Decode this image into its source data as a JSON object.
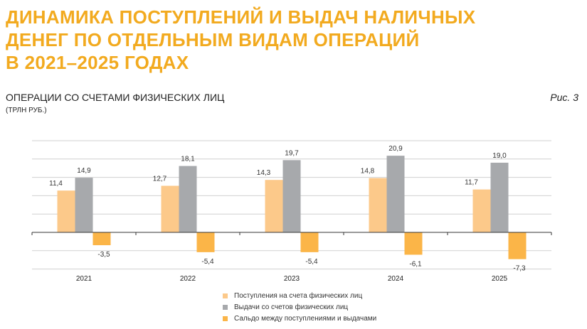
{
  "title_lines": [
    "ДИНАМИКА ПОСТУПЛЕНИЙ И ВЫДАЧ НАЛИЧНЫХ",
    "ДЕНЕГ ПО ОТДЕЛЬНЫМ ВИДАМ ОПЕРАЦИЙ",
    "В 2021–2025 ГОДАХ"
  ],
  "figure_label": "Рис. 3",
  "chart_data": {
    "type": "bar",
    "title": "ОПЕРАЦИИ СО СЧЕТАМИ ФИЗИЧЕСКИХ ЛИЦ",
    "ylabel": "(ТРЛН РУБ.)",
    "categories": [
      "2021",
      "2022",
      "2023",
      "2024",
      "2025"
    ],
    "ylim": [
      -10,
      25
    ],
    "grid": true,
    "legend_position": "bottom",
    "series": [
      {
        "name": "Поступления на счета физических лиц",
        "color": "#FCC98A",
        "values": [
          11.4,
          12.7,
          14.3,
          14.8,
          11.7
        ],
        "labels": [
          "11,4",
          "12,7",
          "14,3",
          "14,8",
          "11,7"
        ]
      },
      {
        "name": "Выдачи со счетов  физических лиц",
        "color": "#A7A9AC",
        "values": [
          14.9,
          18.1,
          19.7,
          20.9,
          19.0
        ],
        "labels": [
          "14,9",
          "18,1",
          "19,7",
          "20,9",
          "19,0"
        ]
      },
      {
        "name": "Сальдо между поступлениями и выдачами",
        "color": "#FBB548",
        "values": [
          -3.5,
          -5.4,
          -5.4,
          -6.1,
          -7.3
        ],
        "labels": [
          "-3,5",
          "-5,4",
          "-5,4",
          "-6,1",
          "-7,3"
        ]
      }
    ]
  }
}
